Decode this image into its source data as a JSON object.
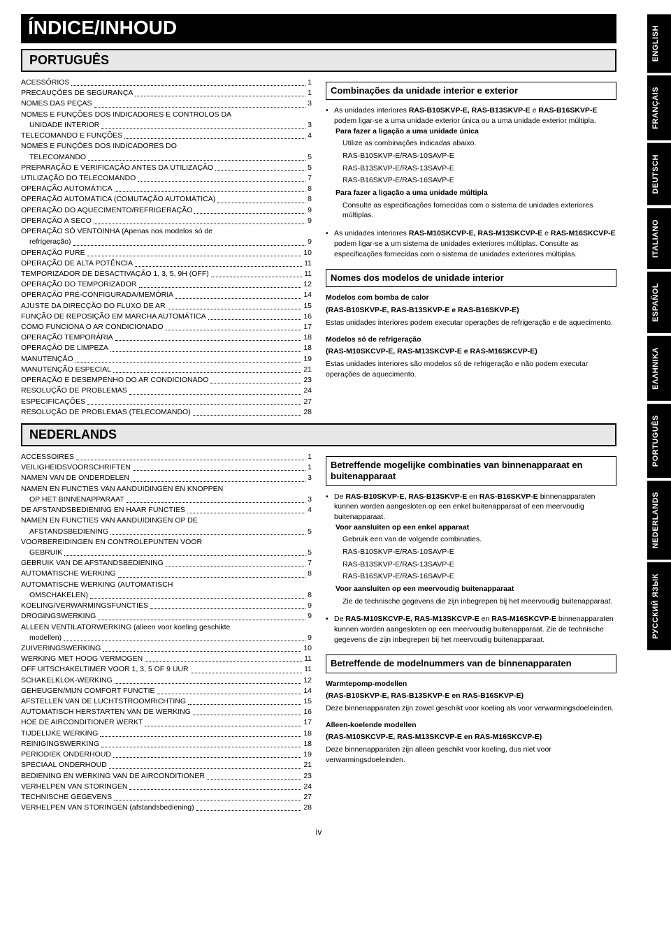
{
  "page_title": "ÍNDICE/INHOUD",
  "page_number": "iv",
  "colors": {
    "black": "#000000",
    "grey": "#e8e8e8",
    "white": "#ffffff"
  },
  "lang_tabs": [
    "ENGLISH",
    "FRANÇAIS",
    "DEUTSCH",
    "ITALIANO",
    "ESPAÑOL",
    "ΕΛΛΗΝΙΚΑ",
    "PORTUGUÊS",
    "NEDERLANDS",
    "РУССКИЙ ЯЗЫК"
  ],
  "sections": [
    {
      "lang_label": "PORTUGUÊS",
      "toc": [
        {
          "t": "ACESSÓRIOS",
          "p": "1"
        },
        {
          "t": "PRECAUÇÕES DE SEGURANÇA",
          "p": "1"
        },
        {
          "t": "NOMES DAS PEÇAS",
          "p": "3"
        },
        {
          "t": "NOMES E FUNÇÕES DOS INDICADORES E CONTROLOS DA",
          "wrap": "UNIDADE INTERIOR",
          "p": "3"
        },
        {
          "t": "TELECOMANDO E FUNÇÕES",
          "p": "4"
        },
        {
          "t": "NOMES E FUNÇÕES DOS INDICADORES DO",
          "wrap": "TELECOMANDO",
          "p": "5"
        },
        {
          "t": "PREPARAÇÃO E VERIFICAÇÃO ANTES DA UTILIZAÇÃO",
          "p": "5"
        },
        {
          "t": "UTILIZAÇÃO DO TELECOMANDO",
          "p": "7"
        },
        {
          "t": "OPERAÇÃO AUTOMÁTICA",
          "p": "8"
        },
        {
          "t": "OPERAÇÃO AUTOMÁTICA (COMUTAÇÃO AUTOMÁTICA)",
          "p": "8"
        },
        {
          "t": "OPERAÇÃO DO AQUECIMENTO/REFRIGERAÇÃO",
          "p": "9"
        },
        {
          "t": "OPERAÇÃO A SECO",
          "p": "9"
        },
        {
          "t": "OPERAÇÃO SÓ VENTOINHA (Apenas nos modelos só de",
          "wrap": "refrigeração)",
          "p": "9"
        },
        {
          "t": "OPERAÇÃO PURE",
          "p": "10"
        },
        {
          "t": "OPERAÇÃO DE ALTA POTÊNCIA",
          "p": "11"
        },
        {
          "t": "TEMPORIZADOR DE DESACTIVAÇÃO 1, 3, 5, 9H (OFF)",
          "p": "11"
        },
        {
          "t": "OPERAÇÃO DO TEMPORIZADOR",
          "p": "12"
        },
        {
          "t": "OPERAÇÃO PRÉ-CONFIGURADA/MEMÓRIA",
          "p": "14"
        },
        {
          "t": "AJUSTE DA DIRECÇÃO DO FLUXO DE AR",
          "p": "15"
        },
        {
          "t": "FUNÇÃO DE REPOSIÇÃO EM MARCHA AUTOMÁTICA",
          "p": "16"
        },
        {
          "t": "COMO FUNCIONA O AR CONDICIONADO",
          "p": "17"
        },
        {
          "t": "OPERAÇÃO TEMPORÁRIA",
          "p": "18"
        },
        {
          "t": "OPERAÇÃO DE LIMPEZA",
          "p": "18"
        },
        {
          "t": "MANUTENÇÃO",
          "p": "19"
        },
        {
          "t": "MANUTENÇÃO ESPECIAL",
          "p": "21"
        },
        {
          "t": "OPERAÇÃO E DESEMPENHO DO AR CONDICIONADO",
          "p": "23"
        },
        {
          "t": "RESOLUÇÃO DE PROBLEMAS",
          "p": "24"
        },
        {
          "t": "ESPECIFICAÇÕES",
          "p": "27"
        },
        {
          "t": "RESOLUÇÃO DE PROBLEMAS (TELECOMANDO)",
          "p": "28"
        }
      ],
      "info": {
        "h1": "Combinações da unidade interior e exterior",
        "b1_intro": "As unidades interiores ",
        "b1_models": "RAS-B10SKVP-E, RAS-B13SKVP-E",
        "b1_and": " e ",
        "b1_model3": "RAS-B16SKVP-E",
        "b1_rest": " podem ligar-se a uma unidade exterior única ou a uma unidade exterior múltipla.",
        "single_head": "Para fazer a ligação a uma unidade única",
        "single_text": "Utilize as combinações indicadas abaixo.",
        "single_lines": [
          "RAS-B10SKVP-E/RAS-10SAVP-E",
          "RAS-B13SKVP-E/RAS-13SAVP-E",
          "RAS-B16SKVP-E/RAS-16SAVP-E"
        ],
        "multi_head": "Para fazer a ligação a uma unidade múltipla",
        "multi_text": "Consulte as especificações fornecidas com o sistema de unidades exteriores múltiplas.",
        "b2_intro": "As unidades interiores ",
        "b2_models": "RAS-M10SKCVP-E, RAS-M13SKCVP-E",
        "b2_and": " e ",
        "b2_model3": "RAS-M16SKCVP-E",
        "b2_rest": " podem ligar-se a um sistema de unidades exteriores múltiplas. Consulte as especificações fornecidas com o sistema de unidades exteriores múltiplas.",
        "h2": "Nomes dos modelos de unidade interior",
        "heat_head": "Modelos com bomba de calor",
        "heat_models": "(RAS-B10SKVP-E, RAS-B13SKVP-E e RAS-B16SKVP-E)",
        "heat_text": "Estas unidades interiores podem executar operações de refrigeração e de aquecimento.",
        "cool_head": "Modelos só de refrigeração",
        "cool_models": "(RAS-M10SKCVP-E, RAS-M13SKCVP-E e RAS-M16SKCVP-E)",
        "cool_text": "Estas unidades interiores são modelos só de refrigeração e não podem executar operações de aquecimento."
      }
    },
    {
      "lang_label": "NEDERLANDS",
      "toc": [
        {
          "t": "ACCESSOIRES",
          "p": "1"
        },
        {
          "t": "VEILIGHEIDSVOORSCHRIFTEN",
          "p": "1"
        },
        {
          "t": "NAMEN VAN DE ONDERDELEN",
          "p": "3"
        },
        {
          "t": "NAMEN EN FUNCTIES VAN AANDUIDINGEN EN KNOPPEN",
          "wrap": "OP HET BINNENAPPARAAT",
          "p": "3"
        },
        {
          "t": "DE AFSTANDSBEDIENING EN HAAR FUNCTIES",
          "p": "4"
        },
        {
          "t": "NAMEN EN FUNCTIES VAN AANDUIDINGEN OP DE",
          "wrap": "AFSTANDSBEDIENING",
          "p": "5"
        },
        {
          "t": "VOORBEREIDINGEN EN CONTROLEPUNTEN VOOR",
          "wrap": "GEBRUIK",
          "p": "5"
        },
        {
          "t": "GEBRUIK VAN DE AFSTANDSBEDIENING",
          "p": "7"
        },
        {
          "t": "AUTOMATISCHE WERKING",
          "p": "8"
        },
        {
          "t": "AUTOMATISCHE WERKING (AUTOMATISCH",
          "wrap": "OMSCHAKELEN)",
          "p": "8"
        },
        {
          "t": "KOELING/VERWARMINGSFUNCTIES",
          "p": "9"
        },
        {
          "t": "DROGINGSWERKING",
          "p": "9"
        },
        {
          "t": "ALLEEN VENTILATORWERKING (alleen voor koeling geschikte",
          "wrap": "modellen)",
          "p": "9"
        },
        {
          "t": "ZUIVERINGSWERKING",
          "p": "10"
        },
        {
          "t": "WERKING MET HOOG VERMOGEN",
          "p": "11"
        },
        {
          "t": "OFF UITSCHAKELTIMER VOOR 1, 3, 5 OF 9 UUR",
          "p": "11"
        },
        {
          "t": "SCHAKELKLOK-WERKING",
          "p": "12"
        },
        {
          "t": "GEHEUGEN/MIJN COMFORT FUNCTIE",
          "p": "14"
        },
        {
          "t": "AFSTELLEN VAN DE LUCHTSTROOMRICHTING",
          "p": "15"
        },
        {
          "t": "AUTOMATISCH HERSTARTEN VAN DE WERKING",
          "p": "16"
        },
        {
          "t": "HOE DE AIRCONDITIONER WERKT",
          "p": "17"
        },
        {
          "t": "TIJDELIJKE WERKING",
          "p": "18"
        },
        {
          "t": "REINIGINGSWERKING",
          "p": "18"
        },
        {
          "t": "PERIODIEK ONDERHOUD",
          "p": "19"
        },
        {
          "t": "SPECIAAL ONDERHOUD",
          "p": "21"
        },
        {
          "t": "BEDIENING EN WERKING VAN DE AIRCONDITIONER",
          "p": "23"
        },
        {
          "t": "VERHELPEN VAN STORINGEN",
          "p": "24"
        },
        {
          "t": "TECHNISCHE GEGEVENS",
          "p": "27"
        },
        {
          "t": "VERHELPEN VAN STORINGEN (afstandsbediening)",
          "p": "28"
        }
      ],
      "info": {
        "h1": "Betreffende mogelijke combinaties van binnenapparaat en buitenapparaat",
        "b1_intro": "De ",
        "b1_models": "RAS-B10SKVP-E, RAS-B13SKVP-E",
        "b1_and": " en ",
        "b1_model3": "RAS-B16SKVP-E",
        "b1_rest": " binnenapparaten kunnen worden aangesloten op een enkel buitenapparaat of een meervoudig buitenapparaat.",
        "single_head": "Voor aansluiten op een enkel apparaat",
        "single_text": "Gebruik een van de volgende combinaties.",
        "single_lines": [
          "RAS-B10SKVP-E/RAS-10SAVP-E",
          "RAS-B13SKVP-E/RAS-13SAVP-E",
          "RAS-B16SKVP-E/RAS-16SAVP-E"
        ],
        "multi_head": "Voor aansluiten op een meervoudig buitenapparaat",
        "multi_text": "Zie de technische gegevens die zijn inbegrepen bij het meervoudig buitenapparaat.",
        "b2_intro": "De ",
        "b2_models": "RAS-M10SKCVP-E, RAS-M13SKCVP-E",
        "b2_and": " en ",
        "b2_model3": "RAS-M16SKCVP-E",
        "b2_rest": " binnenapparaten kunnen worden aangesloten op een meervoudig buitenapparaat. Zie de technische gegevens die zijn inbegrepen bij het meervoudig buitenapparaat.",
        "h2": "Betreffende de modelnummers van de binnenapparaten",
        "heat_head": "Warmtepomp-modellen",
        "heat_models": "(RAS-B10SKVP-E, RAS-B13SKVP-E en RAS-B16SKVP-E)",
        "heat_text": "Deze binnenapparaten zijn zowel geschikt voor koeling als voor verwarmingsdoeleinden.",
        "cool_head": "Alleen-koelende modellen",
        "cool_models": "(RAS-M10SKCVP-E, RAS-M13SKCVP-E en RAS-M16SKCVP-E)",
        "cool_text": "Deze binnenapparaten zijn alleen geschikt voor koeling, dus niet voor verwarmingsdoeleinden."
      }
    }
  ]
}
